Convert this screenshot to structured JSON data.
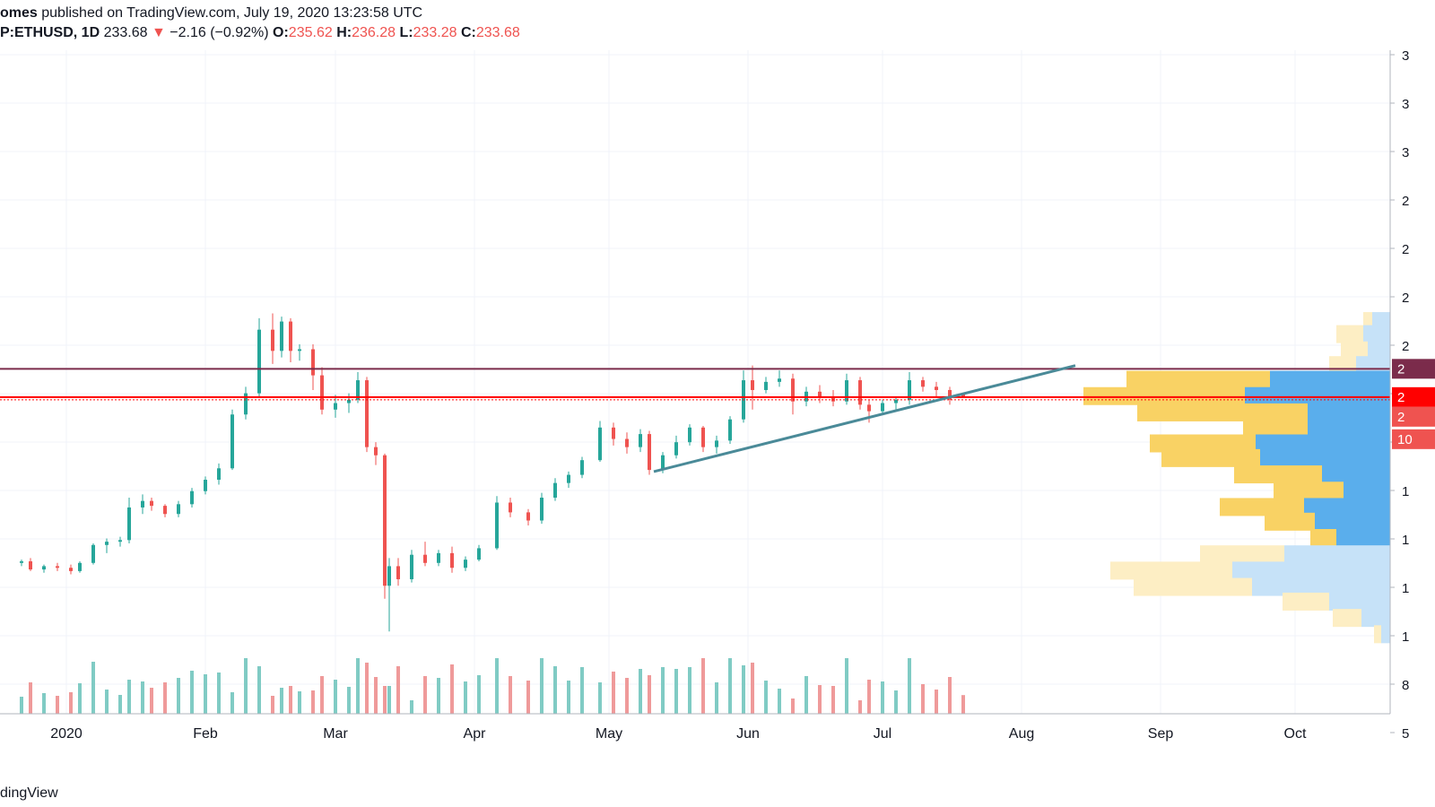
{
  "header": {
    "author": "omes",
    "published_text": "published on TradingView.com, July 19, 2020 13:23:58 UTC",
    "symbol": "P:ETHUSD",
    "interval": "1D",
    "last": "233.68",
    "change_arrow": "▼",
    "change": "−2.16 (−0.92%)",
    "o_label": "O:",
    "o_value": "235.62",
    "h_label": "H:",
    "h_value": "236.28",
    "l_label": "L:",
    "l_value": "233.28",
    "c_label": "C:",
    "c_value": "233.68"
  },
  "footer": {
    "brand": "dingView"
  },
  "colors": {
    "up": "#26a69a",
    "down": "#ef5350",
    "vol_up": "#80cbc4",
    "vol_down": "#ef9a9a",
    "resistance": "#7b2b4b",
    "support_price": "#ff0000",
    "trendline": "#4a8a98",
    "vp_yellow": "#f9d264",
    "vp_blue": "#5aaeec",
    "vp_yellow_light": "#fdeec4",
    "vp_blue_light": "#c6e2f8"
  },
  "chart_data": {
    "type": "candlestick",
    "time_axis_labels": [
      "2020",
      "Feb",
      "Mar",
      "Apr",
      "May",
      "Jun",
      "Jul",
      "Aug",
      "Sep",
      "Oct"
    ],
    "price_axis_visible_labels": [
      "3",
      "3",
      "3",
      "2",
      "2",
      "2",
      "2",
      "2",
      "1",
      "1",
      "1",
      "1",
      "1",
      "8",
      "5"
    ],
    "price_tags": [
      "2",
      "2",
      "2",
      "10"
    ],
    "y_range": [
      60,
      360
    ],
    "resistance_level": 251,
    "support_level": 233.68,
    "trendline": {
      "from": [
        "2020-05-11",
        188
      ],
      "to": [
        "2020-08-13",
        253
      ]
    },
    "ohlc": [
      [
        "2019-12-22",
        132,
        134,
        130,
        133
      ],
      [
        "2019-12-24",
        133,
        135,
        127,
        128
      ],
      [
        "2019-12-27",
        128,
        131,
        126,
        130
      ],
      [
        "2019-12-30",
        130,
        132,
        127,
        129
      ],
      [
        "2020-01-02",
        129,
        131,
        125,
        127
      ],
      [
        "2020-01-04",
        127,
        133,
        126,
        132
      ],
      [
        "2020-01-07",
        132,
        144,
        131,
        143
      ],
      [
        "2020-01-10",
        143,
        147,
        138,
        145
      ],
      [
        "2020-01-13",
        145,
        148,
        142,
        146
      ],
      [
        "2020-01-15",
        146,
        172,
        144,
        166
      ],
      [
        "2020-01-18",
        166,
        174,
        162,
        170
      ],
      [
        "2020-01-20",
        170,
        172,
        164,
        167
      ],
      [
        "2020-01-23",
        167,
        168,
        160,
        162
      ],
      [
        "2020-01-26",
        162,
        170,
        160,
        168
      ],
      [
        "2020-01-29",
        168,
        178,
        166,
        176
      ],
      [
        "2020-02-01",
        176,
        185,
        174,
        183
      ],
      [
        "2020-02-04",
        183,
        193,
        180,
        190
      ],
      [
        "2020-02-07",
        190,
        226,
        189,
        223
      ],
      [
        "2020-02-10",
        223,
        240,
        220,
        236
      ],
      [
        "2020-02-13",
        236,
        282,
        234,
        275
      ],
      [
        "2020-02-16",
        275,
        285,
        254,
        262
      ],
      [
        "2020-02-18",
        262,
        283,
        258,
        280
      ],
      [
        "2020-02-20",
        280,
        282,
        255,
        262
      ],
      [
        "2020-02-22",
        262,
        266,
        256,
        263
      ],
      [
        "2020-02-25",
        263,
        266,
        238,
        247
      ],
      [
        "2020-02-27",
        247,
        252,
        223,
        226
      ],
      [
        "2020-03-01",
        226,
        235,
        221,
        230
      ],
      [
        "2020-03-04",
        230,
        236,
        224,
        232
      ],
      [
        "2020-03-06",
        232,
        249,
        230,
        244
      ],
      [
        "2020-03-08",
        244,
        246,
        200,
        203
      ],
      [
        "2020-03-10",
        203,
        206,
        192,
        198
      ],
      [
        "2020-03-12",
        198,
        199,
        110,
        118
      ],
      [
        "2020-03-13",
        118,
        135,
        90,
        130
      ],
      [
        "2020-03-15",
        130,
        135,
        118,
        122
      ],
      [
        "2020-03-18",
        122,
        140,
        120,
        137
      ],
      [
        "2020-03-21",
        137,
        145,
        130,
        132
      ],
      [
        "2020-03-24",
        132,
        140,
        130,
        138
      ],
      [
        "2020-03-27",
        138,
        142,
        126,
        129
      ],
      [
        "2020-03-30",
        129,
        136,
        127,
        134
      ],
      [
        "2020-04-02",
        134,
        143,
        133,
        141
      ],
      [
        "2020-04-06",
        141,
        173,
        140,
        169
      ],
      [
        "2020-04-09",
        169,
        172,
        160,
        163
      ],
      [
        "2020-04-13",
        163,
        165,
        155,
        158
      ],
      [
        "2020-04-16",
        158,
        175,
        156,
        172
      ],
      [
        "2020-04-19",
        172,
        184,
        170,
        181
      ],
      [
        "2020-04-22",
        181,
        188,
        178,
        186
      ],
      [
        "2020-04-25",
        186,
        197,
        184,
        195
      ],
      [
        "2020-04-29",
        195,
        219,
        194,
        215
      ],
      [
        "2020-05-02",
        215,
        218,
        204,
        208
      ],
      [
        "2020-05-05",
        208,
        212,
        199,
        203
      ],
      [
        "2020-05-08",
        203,
        214,
        200,
        211
      ],
      [
        "2020-05-10",
        211,
        213,
        186,
        189
      ],
      [
        "2020-05-13",
        189,
        200,
        187,
        198
      ],
      [
        "2020-05-16",
        198,
        210,
        196,
        206
      ],
      [
        "2020-05-19",
        206,
        217,
        204,
        215
      ],
      [
        "2020-05-22",
        215,
        216,
        200,
        203
      ],
      [
        "2020-05-25",
        203,
        210,
        199,
        207
      ],
      [
        "2020-05-28",
        207,
        222,
        205,
        220
      ],
      [
        "2020-05-31",
        220,
        250,
        218,
        244
      ],
      [
        "2020-06-02",
        244,
        253,
        226,
        238
      ],
      [
        "2020-06-05",
        238,
        246,
        236,
        243
      ],
      [
        "2020-06-08",
        243,
        250,
        240,
        245
      ],
      [
        "2020-06-11",
        245,
        248,
        223,
        231
      ],
      [
        "2020-06-14",
        231,
        240,
        228,
        237
      ],
      [
        "2020-06-17",
        237,
        241,
        230,
        234
      ],
      [
        "2020-06-20",
        234,
        238,
        228,
        231
      ],
      [
        "2020-06-23",
        231,
        248,
        229,
        244
      ],
      [
        "2020-06-26",
        244,
        246,
        226,
        229
      ],
      [
        "2020-06-28",
        229,
        232,
        218,
        225
      ],
      [
        "2020-07-01",
        225,
        232,
        223,
        230
      ],
      [
        "2020-07-04",
        230,
        234,
        226,
        232
      ],
      [
        "2020-07-07",
        232,
        249,
        229,
        244
      ],
      [
        "2020-07-10",
        244,
        246,
        237,
        240
      ],
      [
        "2020-07-13",
        240,
        243,
        234,
        238
      ],
      [
        "2020-07-16",
        238,
        240,
        229,
        232
      ],
      [
        "2020-07-19",
        235.62,
        236.28,
        233.28,
        233.68
      ]
    ],
    "volume_profile": [
      {
        "price": 280,
        "yellow": 10,
        "blue": 20,
        "light": true
      },
      {
        "price": 272,
        "yellow": 30,
        "blue": 30,
        "light": true
      },
      {
        "price": 262,
        "yellow": 30,
        "blue": 25,
        "light": true
      },
      {
        "price": 253,
        "yellow": 30,
        "blue": 38,
        "light": true
      },
      {
        "price": 244,
        "yellow": 160,
        "blue": 134,
        "light": false
      },
      {
        "price": 234,
        "yellow": 180,
        "blue": 162,
        "light": false
      },
      {
        "price": 224,
        "yellow": 190,
        "blue": 92,
        "light": false
      },
      {
        "price": 215,
        "yellow": 72,
        "blue": 92,
        "light": false
      },
      {
        "price": 205,
        "yellow": 118,
        "blue": 150,
        "light": false
      },
      {
        "price": 196,
        "yellow": 110,
        "blue": 145,
        "light": false
      },
      {
        "price": 186,
        "yellow": 98,
        "blue": 76,
        "light": false
      },
      {
        "price": 176,
        "yellow": 78,
        "blue": 52,
        "light": false
      },
      {
        "price": 166,
        "yellow": 94,
        "blue": 96,
        "light": false
      },
      {
        "price": 157,
        "yellow": 56,
        "blue": 84,
        "light": false
      },
      {
        "price": 147,
        "yellow": 29,
        "blue": 60,
        "light": false
      },
      {
        "price": 137,
        "yellow": 94,
        "blue": 118,
        "light": true
      },
      {
        "price": 127,
        "yellow": 136,
        "blue": 176,
        "light": true
      },
      {
        "price": 117,
        "yellow": 132,
        "blue": 154,
        "light": true
      },
      {
        "price": 108,
        "yellow": 52,
        "blue": 68,
        "light": true
      },
      {
        "price": 98,
        "yellow": 32,
        "blue": 32,
        "light": true
      },
      {
        "price": 88,
        "yellow": 8,
        "blue": 10,
        "light": true
      }
    ]
  }
}
